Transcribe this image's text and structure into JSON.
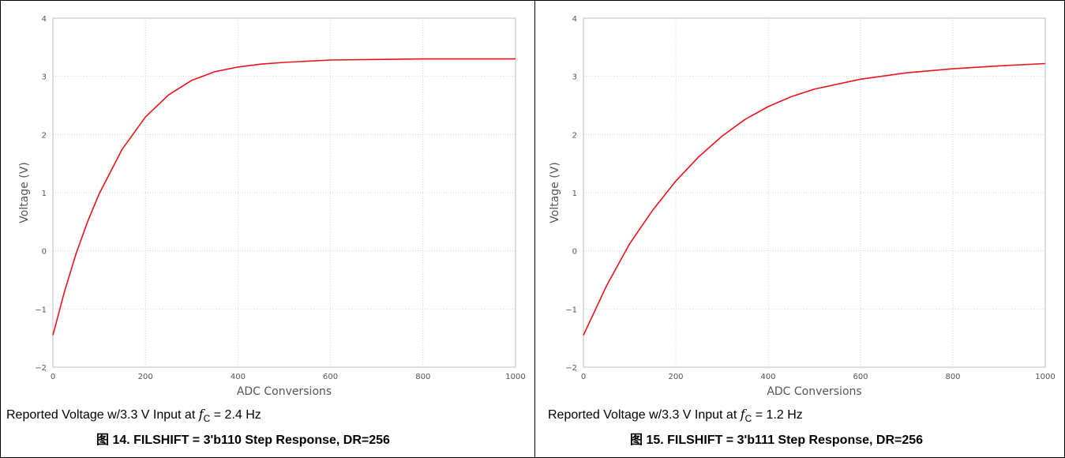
{
  "chart_data": [
    {
      "type": "line",
      "xlabel": "ADC Conversions",
      "ylabel": "Voltage (V)",
      "xlim": [
        0,
        1000
      ],
      "ylim": [
        -2,
        4
      ],
      "xticks": [
        "0",
        "200",
        "400",
        "600",
        "800",
        "1000"
      ],
      "yticks": [
        "4",
        "3",
        "2",
        "1",
        "0",
        "−1",
        "−2"
      ],
      "grid": true,
      "line_color": "#e8141b",
      "series": [
        {
          "x": [
            0,
            25,
            50,
            75,
            100,
            150,
            200,
            250,
            300,
            350,
            400,
            450,
            500,
            600,
            700,
            800,
            900,
            1000
          ],
          "values": [
            -1.45,
            -0.7,
            -0.05,
            0.5,
            0.98,
            1.75,
            2.3,
            2.68,
            2.93,
            3.08,
            3.16,
            3.21,
            3.24,
            3.28,
            3.29,
            3.3,
            3.3,
            3.3
          ]
        }
      ],
      "caption_prefix": "Reported Voltage w/3.3 V Input at ",
      "caption_fc": "f",
      "caption_sub": "C",
      "caption_suffix": " = 2.4 Hz",
      "figure_title": "图 14. FILSHIFT = 3'b110 Step Response, DR=256"
    },
    {
      "type": "line",
      "xlabel": "ADC Conversions",
      "ylabel": "Voltage (V)",
      "xlim": [
        0,
        1000
      ],
      "ylim": [
        -2,
        4
      ],
      "xticks": [
        "0",
        "200",
        "400",
        "600",
        "800",
        "1000"
      ],
      "yticks": [
        "4",
        "3",
        "2",
        "1",
        "0",
        "−1",
        "−2"
      ],
      "grid": true,
      "line_color": "#e8141b",
      "series": [
        {
          "x": [
            0,
            50,
            100,
            150,
            200,
            250,
            300,
            350,
            400,
            450,
            500,
            600,
            700,
            800,
            900,
            1000
          ],
          "values": [
            -1.45,
            -0.6,
            0.12,
            0.7,
            1.2,
            1.62,
            1.97,
            2.26,
            2.48,
            2.65,
            2.78,
            2.95,
            3.06,
            3.13,
            3.18,
            3.22
          ]
        }
      ],
      "caption_prefix": "Reported Voltage w/3.3 V Input at ",
      "caption_fc": "f",
      "caption_sub": "C",
      "caption_suffix": " = 1.2 Hz",
      "figure_title": "图 15. FILSHIFT = 3'b111 Step Response, DR=256"
    }
  ]
}
